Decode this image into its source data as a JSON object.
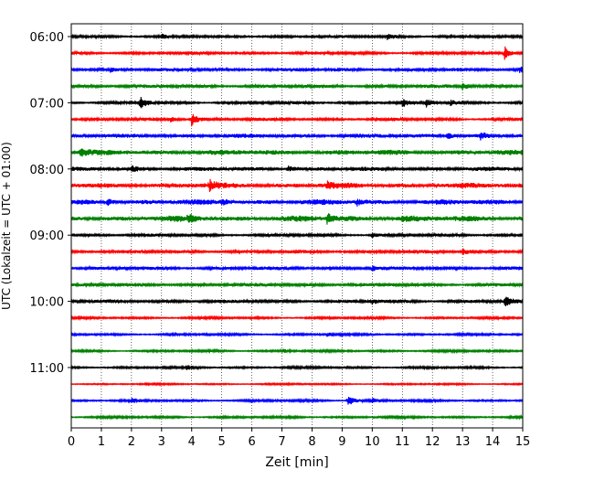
{
  "chart_data": {
    "type": "line",
    "xlabel": "Zeit  [min]",
    "ylabel": "UTC (Lokalzeit = UTC + 01:00)",
    "xlim": [
      0,
      15
    ],
    "x_ticks": [
      0,
      1,
      2,
      3,
      4,
      5,
      6,
      7,
      8,
      9,
      10,
      11,
      12,
      13,
      14,
      15
    ],
    "x_tick_labels": [
      "0",
      "1",
      "2",
      "3",
      "4",
      "5",
      "6",
      "7",
      "8",
      "9",
      "10",
      "11",
      "12",
      "13",
      "14",
      "15"
    ],
    "y_tick_labels": [
      "06:00",
      "07:00",
      "08:00",
      "09:00",
      "10:00",
      "11:00"
    ],
    "y_tick_rows": [
      0,
      4,
      8,
      12,
      16,
      20
    ],
    "grid": {
      "x": true,
      "style": "dotted"
    },
    "trace_colors": [
      "#000000",
      "#ff0000",
      "#0000ff",
      "#008000"
    ],
    "series": [
      {
        "start": "06:00",
        "amp": 0.5,
        "events": [
          {
            "t": 3.0,
            "a": 1.0
          },
          {
            "t": 10.5,
            "a": 1.3
          }
        ]
      },
      {
        "start": "06:15",
        "amp": 0.5,
        "events": [
          {
            "t": 14.4,
            "a": 3.0
          }
        ]
      },
      {
        "start": "06:30",
        "amp": 0.6,
        "events": [
          {
            "t": 1.3,
            "a": 1.0
          },
          {
            "t": 14.9,
            "a": 1.0
          }
        ]
      },
      {
        "start": "06:45",
        "amp": 0.6,
        "events": [
          {
            "t": 13.0,
            "a": 1.4
          }
        ]
      },
      {
        "start": "07:00",
        "amp": 0.5,
        "events": [
          {
            "t": 2.3,
            "a": 2.8
          },
          {
            "t": 11.0,
            "a": 1.5
          },
          {
            "t": 11.8,
            "a": 1.6
          },
          {
            "t": 12.6,
            "a": 1.2
          }
        ]
      },
      {
        "start": "07:15",
        "amp": 0.5,
        "events": [
          {
            "t": 3.3,
            "a": 1.0
          },
          {
            "t": 4.0,
            "a": 2.8
          }
        ]
      },
      {
        "start": "07:30",
        "amp": 0.7,
        "events": [
          {
            "t": 12.5,
            "a": 1.4
          },
          {
            "t": 13.6,
            "a": 1.3
          }
        ]
      },
      {
        "start": "07:45",
        "amp": 0.9,
        "events": [
          {
            "t": 0.3,
            "a": 1.3
          }
        ]
      },
      {
        "start": "08:00",
        "amp": 0.7,
        "events": [
          {
            "t": 2.0,
            "a": 1.2
          },
          {
            "t": 7.2,
            "a": 1.2
          }
        ]
      },
      {
        "start": "08:15",
        "amp": 0.9,
        "events": [
          {
            "t": 4.6,
            "a": 2.0
          },
          {
            "t": 8.5,
            "a": 1.3
          }
        ]
      },
      {
        "start": "08:30",
        "amp": 0.9,
        "events": [
          {
            "t": 1.2,
            "a": 1.4
          },
          {
            "t": 5.0,
            "a": 1.2
          },
          {
            "t": 9.5,
            "a": 1.2
          }
        ]
      },
      {
        "start": "08:45",
        "amp": 1.0,
        "events": [
          {
            "t": 3.9,
            "a": 1.5
          },
          {
            "t": 8.5,
            "a": 1.8
          },
          {
            "t": 11.0,
            "a": 1.3
          }
        ]
      },
      {
        "start": "09:00",
        "amp": 0.5,
        "events": [
          {
            "t": 10.0,
            "a": 1.0
          }
        ]
      },
      {
        "start": "09:15",
        "amp": 0.6,
        "events": [
          {
            "t": 13.0,
            "a": 1.1
          }
        ]
      },
      {
        "start": "09:30",
        "amp": 0.6,
        "events": [
          {
            "t": 10.0,
            "a": 0.9
          }
        ]
      },
      {
        "start": "09:45",
        "amp": 0.6,
        "events": []
      },
      {
        "start": "10:00",
        "amp": 0.6,
        "events": [
          {
            "t": 10.0,
            "a": 1.0
          },
          {
            "t": 14.4,
            "a": 1.9
          }
        ]
      },
      {
        "start": "10:15",
        "amp": 0.4,
        "events": []
      },
      {
        "start": "10:30",
        "amp": 0.4,
        "events": [
          {
            "t": 8.5,
            "a": 0.8
          }
        ]
      },
      {
        "start": "10:45",
        "amp": 0.4,
        "events": [
          {
            "t": 7.0,
            "a": 0.8
          }
        ]
      },
      {
        "start": "11:00",
        "amp": 0.4,
        "events": [
          {
            "t": 3.8,
            "a": 0.8
          }
        ]
      },
      {
        "start": "11:15",
        "amp": 0.3,
        "events": []
      },
      {
        "start": "11:30",
        "amp": 0.4,
        "events": [
          {
            "t": 9.2,
            "a": 2.5
          },
          {
            "t": 10.0,
            "a": 1.3
          },
          {
            "t": 2.0,
            "a": 1.0
          }
        ]
      },
      {
        "start": "11:45",
        "amp": 0.4,
        "events": []
      }
    ]
  }
}
